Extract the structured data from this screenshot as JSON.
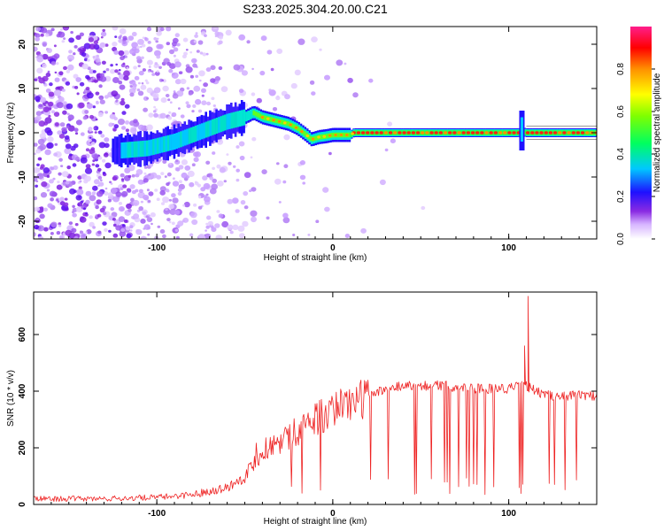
{
  "title": "S233.2025.304.20.00.C21",
  "chart_data": [
    {
      "type": "heatmap",
      "xlabel": "Height of straight line (km)",
      "ylabel": "Frequency (Hz)",
      "xlim": [
        -170,
        150
      ],
      "ylim": [
        -24,
        24
      ],
      "xticks": [
        -100,
        0,
        100
      ],
      "yticks": [
        -20,
        -10,
        0,
        10,
        20
      ],
      "colorbar": {
        "label": "Normalized spectral amplitude",
        "range": [
          0,
          1
        ],
        "ticks": [
          0.0,
          0.2,
          0.4,
          0.6,
          0.8
        ]
      },
      "ridge": {
        "height_km": [
          -120,
          -105,
          -90,
          -80,
          -70,
          -60,
          -50,
          -45,
          -40,
          -35,
          -30,
          -25,
          -20,
          -15,
          -12,
          -8,
          -4,
          0,
          5,
          10,
          12,
          20,
          40,
          60,
          80,
          100,
          105,
          108,
          110,
          112,
          120,
          140,
          150
        ],
        "frequency_hz": [
          -4,
          -3.5,
          -2,
          -0.5,
          1,
          2.5,
          3.5,
          4.5,
          3.5,
          3,
          2.5,
          2,
          1,
          -0.5,
          -1.5,
          -1,
          -0.8,
          -0.5,
          -0.5,
          -0.5,
          0,
          0,
          0,
          0,
          0,
          0,
          0,
          0.2,
          0,
          0,
          0,
          0,
          0
        ]
      }
    },
    {
      "type": "line",
      "xlabel": "Height of straight line (km)",
      "ylabel": "SNR (10 * v/v)",
      "xlim": [
        -170,
        150
      ],
      "ylim": [
        0,
        750
      ],
      "xticks": [
        -100,
        0,
        100
      ],
      "yticks": [
        0,
        200,
        400,
        600
      ],
      "series": [
        {
          "name": "SNR",
          "envelope": {
            "height_km": [
              -170,
              -130,
              -100,
              -80,
              -60,
              -50,
              -40,
              -30,
              -20,
              -10,
              0,
              10,
              20,
              30,
              40,
              60,
              80,
              100,
              110,
              120,
              150
            ],
            "snr": [
              20,
              20,
              25,
              35,
              60,
              100,
              190,
              220,
              260,
              300,
              330,
              360,
              380,
              410,
              420,
              420,
              410,
              410,
              420,
              385,
              385
            ]
          },
          "spikes": [
            {
              "height_km": 109,
              "snr": 560
            },
            {
              "height_km": 111,
              "snr": 735
            }
          ]
        }
      ]
    }
  ]
}
